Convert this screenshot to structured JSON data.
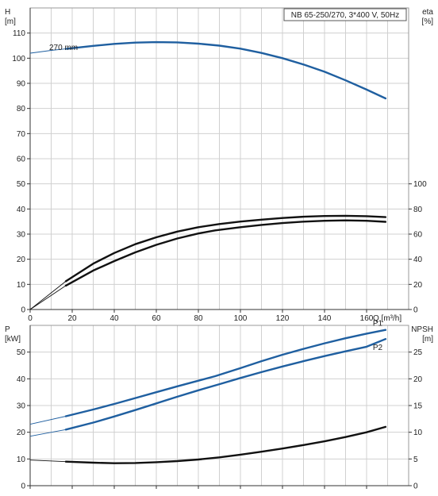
{
  "chart_data": [
    {
      "panel": "top",
      "type": "line",
      "title": "NB 65-250/270, 3*400 V, 50Hz",
      "xlabel": "Q [m³/h]",
      "xlim": [
        0,
        180
      ],
      "xticks": [
        0,
        20,
        40,
        60,
        80,
        100,
        120,
        140,
        160
      ],
      "left_axis": {
        "label_line1": "H",
        "label_line2": "[m]",
        "ylim": [
          0,
          120
        ],
        "ticks": [
          0,
          10,
          20,
          30,
          40,
          50,
          60,
          70,
          80,
          90,
          100,
          110
        ]
      },
      "right_axis": {
        "label_line1": "eta",
        "label_line2": "[%]",
        "ylim": [
          0,
          240
        ],
        "ticks": [
          0,
          20,
          40,
          60,
          80,
          100
        ]
      },
      "grid": true,
      "series": [
        {
          "name": "270 mm",
          "axis": "left",
          "color": "#1f5fa0",
          "x_thin": [
            0,
            10,
            17
          ],
          "y_thin": [
            102,
            103.1,
            103.7
          ],
          "x": [
            17,
            30,
            40,
            50,
            60,
            70,
            80,
            90,
            100,
            110,
            120,
            130,
            140,
            150,
            160,
            169
          ],
          "y": [
            103.7,
            104.9,
            105.7,
            106.2,
            106.4,
            106.3,
            105.8,
            105.0,
            103.8,
            102.1,
            100.0,
            97.5,
            94.6,
            91.2,
            87.5,
            84.0
          ]
        },
        {
          "axis": "right",
          "color": "#111111",
          "x_thin": [
            0,
            17
          ],
          "y_thin": [
            0,
            22.5
          ],
          "x": [
            17,
            30,
            40,
            50,
            60,
            70,
            80,
            90,
            100,
            110,
            120,
            130,
            140,
            150,
            160,
            169
          ],
          "y": [
            22.5,
            36.5,
            45.0,
            52.0,
            57.5,
            62.0,
            65.5,
            68.0,
            70.0,
            71.5,
            72.8,
            73.8,
            74.4,
            74.6,
            74.3,
            73.5
          ]
        },
        {
          "axis": "right",
          "color": "#111111",
          "x_thin": [
            0,
            17
          ],
          "y_thin": [
            0,
            19
          ],
          "x": [
            17,
            30,
            40,
            50,
            60,
            70,
            80,
            88,
            100,
            110,
            120,
            130,
            140,
            150,
            160,
            169
          ],
          "y": [
            19.0,
            31.0,
            38.5,
            45.5,
            51.5,
            56.5,
            60.5,
            63.0,
            65.5,
            67.3,
            68.8,
            69.9,
            70.6,
            70.9,
            70.6,
            69.8
          ]
        }
      ]
    },
    {
      "panel": "bottom",
      "type": "line",
      "xlim": [
        0,
        180
      ],
      "xticks": [
        0,
        20,
        40,
        60,
        80,
        100,
        120,
        140,
        160
      ],
      "left_axis": {
        "label_line1": "P",
        "label_line2": "[kW]",
        "ylim": [
          0,
          60
        ],
        "ticks": [
          0,
          10,
          20,
          30,
          40,
          50
        ]
      },
      "right_axis": {
        "label_line1": "NPSH",
        "label_line2": "[m]",
        "ylim": [
          0,
          30
        ],
        "ticks": [
          0,
          5,
          10,
          15,
          20,
          25
        ]
      },
      "grid": true,
      "series": [
        {
          "name": "P1",
          "axis": "left",
          "color": "#1f5fa0",
          "x_thin": [
            0,
            17
          ],
          "y_thin": [
            23.0,
            26.0
          ],
          "x": [
            17,
            30,
            40,
            50,
            60,
            70,
            80,
            88,
            100,
            110,
            120,
            130,
            140,
            150,
            160,
            169
          ],
          "y": [
            26.0,
            28.5,
            30.6,
            32.8,
            35.0,
            37.2,
            39.3,
            41.0,
            44.0,
            46.6,
            49.0,
            51.2,
            53.3,
            55.2,
            56.9,
            58.3
          ]
        },
        {
          "name": "P2",
          "axis": "left",
          "color": "#1f5fa0",
          "x_thin": [
            0,
            17
          ],
          "y_thin": [
            18.5,
            21.0
          ],
          "x": [
            17,
            30,
            40,
            50,
            60,
            70,
            80,
            90,
            100,
            110,
            120,
            130,
            140,
            150,
            160,
            169
          ],
          "y": [
            21.0,
            23.6,
            25.9,
            28.3,
            30.8,
            33.3,
            35.7,
            38.0,
            40.3,
            42.5,
            44.6,
            46.6,
            48.5,
            50.3,
            52.0,
            54.9
          ]
        },
        {
          "axis": "right",
          "color": "#111111",
          "x_thin": [
            0,
            17
          ],
          "y_thin": [
            4.8,
            4.5
          ],
          "x": [
            17,
            30,
            40,
            50,
            60,
            70,
            80,
            90,
            100,
            110,
            120,
            130,
            140,
            150,
            160,
            169
          ],
          "y": [
            4.5,
            4.3,
            4.2,
            4.25,
            4.4,
            4.6,
            4.9,
            5.3,
            5.8,
            6.35,
            6.95,
            7.6,
            8.3,
            9.1,
            10.0,
            11.0
          ]
        }
      ]
    }
  ]
}
